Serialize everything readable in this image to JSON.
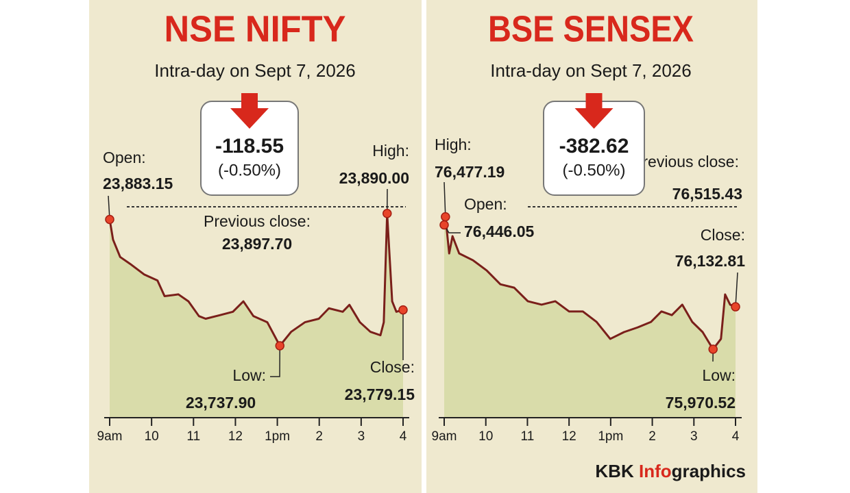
{
  "chart_data": [
    {
      "type": "line",
      "title": "NSE NIFTY",
      "subtitle": "Intra-day on Sept 7, 2026",
      "color": "#7a1f1a",
      "fill": "#d9dcaa",
      "xlim": [
        9,
        16
      ],
      "xticks": [
        {
          "value": 9,
          "label": "9am"
        },
        10,
        11,
        12,
        {
          "value": 13,
          "label": "1pm"
        },
        {
          "value": 14,
          "label": "2"
        },
        {
          "value": 15,
          "label": "3"
        },
        {
          "value": 16,
          "label": "4"
        }
      ],
      "x": [
        9.0,
        9.08,
        9.25,
        9.49,
        9.82,
        10.14,
        10.31,
        10.64,
        10.88,
        11.13,
        11.29,
        11.62,
        11.94,
        12.19,
        12.43,
        12.76,
        13.06,
        13.33,
        13.66,
        13.99,
        14.23,
        14.56,
        14.72,
        14.97,
        15.22,
        15.46,
        15.54,
        15.62,
        15.74,
        15.84,
        16.0
      ],
      "values": [
        23883.15,
        23860,
        23840,
        23832,
        23820,
        23813,
        23795,
        23797,
        23789,
        23772,
        23769,
        23773,
        23777,
        23789,
        23772,
        23765,
        23737.9,
        23754,
        23765,
        23769,
        23781,
        23777,
        23785,
        23765,
        23754,
        23750,
        23765,
        23890.0,
        23789,
        23777,
        23779.15
      ],
      "change": {
        "value": -118.55,
        "percent": {
          "value": -0.5,
          "label": "(-0.50%)"
        }
      },
      "open": {
        "label": "Open:",
        "value": 23883.15,
        "value_label": "23,883.15"
      },
      "high": {
        "label": "High:",
        "value": 23890.0,
        "value_label": "23,890.00"
      },
      "previous_close": {
        "label": "Previous close:",
        "value": 23897.7,
        "value_label": "23,897.70"
      },
      "low": {
        "label": "Low:",
        "value": 23737.9,
        "value_label": "23,737.90"
      },
      "close": {
        "label": "Close:",
        "value": 23779.15,
        "value_label": "23,779.15"
      }
    },
    {
      "type": "line",
      "title": "BSE SENSEX",
      "subtitle": "Intra-day on Sept 7, 2026",
      "color": "#7a1f1a",
      "fill": "#d9dcaa",
      "xlim": [
        9,
        16
      ],
      "xticks": [
        {
          "value": 9,
          "label": "9am"
        },
        10,
        11,
        12,
        {
          "value": 13,
          "label": "1pm"
        },
        {
          "value": 14,
          "label": "2"
        },
        {
          "value": 15,
          "label": "3"
        },
        {
          "value": 16,
          "label": "4"
        }
      ],
      "x": [
        9.0,
        9.03,
        9.12,
        9.2,
        9.36,
        9.69,
        10.02,
        10.35,
        10.68,
        11.01,
        11.34,
        11.67,
        12.0,
        12.33,
        12.66,
        12.99,
        13.32,
        13.65,
        13.97,
        14.22,
        14.47,
        14.72,
        14.96,
        15.21,
        15.46,
        15.65,
        15.75,
        15.87,
        16.0
      ],
      "values": [
        76446.05,
        76477.19,
        76337,
        76403,
        76337,
        76311,
        76272,
        76219,
        76206,
        76154,
        76141,
        76154,
        76115,
        76115,
        76075,
        76010,
        76036,
        76054,
        76075,
        76115,
        76101,
        76141,
        76075,
        76036,
        75970.52,
        76010,
        76180,
        76141,
        76132.81
      ],
      "change": {
        "value": -382.62,
        "percent": {
          "value": -0.5,
          "label": "(-0.50%)"
        }
      },
      "high": {
        "label": "High:",
        "value": 76477.19,
        "value_label": "76,477.19"
      },
      "open": {
        "label": "Open:",
        "value": 76446.05,
        "value_label": "76,446.05"
      },
      "previous_close": {
        "label": "Previous close:",
        "value": 76515.43,
        "value_label": "76,515.43"
      },
      "close": {
        "label": "Close:",
        "value": 76132.81,
        "value_label": "76,132.81"
      },
      "low": {
        "label": "Low:",
        "value": 75970.52,
        "value_label": "75,970.52"
      }
    }
  ],
  "footer": {
    "brand": "KBK",
    "highlight": "Info",
    "rest": "graphics"
  }
}
